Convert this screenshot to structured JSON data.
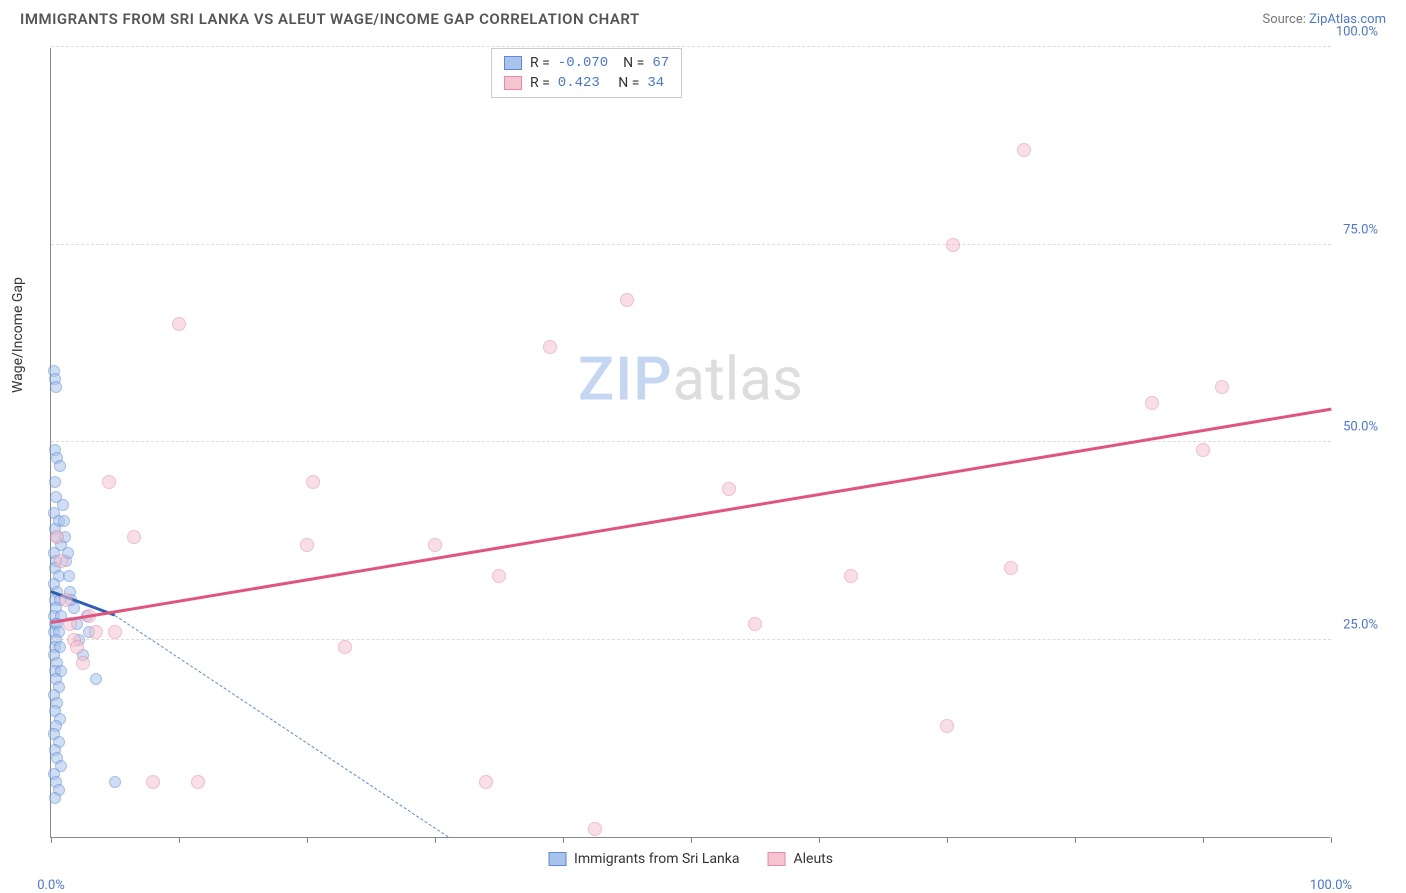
{
  "header": {
    "title": "IMMIGRANTS FROM SRI LANKA VS ALEUT WAGE/INCOME GAP CORRELATION CHART",
    "source_prefix": "Source: ",
    "source_link": "ZipAtlas.com"
  },
  "chart": {
    "type": "scatter",
    "y_axis_label": "Wage/Income Gap",
    "xlim": [
      0,
      100
    ],
    "ylim": [
      0,
      100
    ],
    "x_ticks": [
      0,
      10,
      20,
      30,
      40,
      50,
      60,
      70,
      80,
      90,
      100
    ],
    "x_tick_labels": {
      "0": "0.0%",
      "100": "100.0%"
    },
    "y_gridlines": [
      25,
      50,
      75,
      100
    ],
    "y_tick_labels": {
      "25": "25.0%",
      "50": "50.0%",
      "75": "75.0%",
      "100": "100.0%"
    },
    "background_color": "#ffffff",
    "grid_color": "#dddddd",
    "axis_color": "#888888",
    "watermark": {
      "zip": "ZIP",
      "atlas": "atlas"
    },
    "series": [
      {
        "name": "Immigrants from Sri Lanka",
        "color_fill": "#a8c4ec",
        "color_stroke": "#5b8ad6",
        "marker_size": 12,
        "fill_opacity": 0.55,
        "R": "-0.070",
        "N": "67",
        "trend": {
          "x1": 0,
          "y1": 31,
          "x2": 5,
          "y2": 28,
          "color": "#2e5fb3",
          "width": 2.5
        },
        "trend_extrapolate": {
          "x1": 5,
          "y1": 28,
          "x2": 31,
          "y2": 0,
          "color": "#5b8ad6"
        },
        "points": [
          [
            0.2,
            59
          ],
          [
            0.3,
            58
          ],
          [
            0.4,
            57
          ],
          [
            0.3,
            49
          ],
          [
            0.5,
            48
          ],
          [
            0.7,
            47
          ],
          [
            0.3,
            45
          ],
          [
            0.4,
            43
          ],
          [
            0.2,
            41
          ],
          [
            0.6,
            40
          ],
          [
            0.3,
            39
          ],
          [
            0.5,
            38
          ],
          [
            0.8,
            37
          ],
          [
            0.2,
            36
          ],
          [
            0.4,
            35
          ],
          [
            0.3,
            34
          ],
          [
            0.6,
            33
          ],
          [
            0.2,
            32
          ],
          [
            0.5,
            31
          ],
          [
            0.3,
            30
          ],
          [
            0.7,
            30
          ],
          [
            0.4,
            29
          ],
          [
            0.2,
            28
          ],
          [
            0.8,
            28
          ],
          [
            0.3,
            27
          ],
          [
            0.5,
            27
          ],
          [
            0.2,
            26
          ],
          [
            0.6,
            26
          ],
          [
            0.4,
            25
          ],
          [
            0.3,
            24
          ],
          [
            0.7,
            24
          ],
          [
            0.2,
            23
          ],
          [
            0.5,
            22
          ],
          [
            0.3,
            21
          ],
          [
            0.8,
            21
          ],
          [
            0.4,
            20
          ],
          [
            0.6,
            19
          ],
          [
            0.2,
            18
          ],
          [
            0.5,
            17
          ],
          [
            0.3,
            16
          ],
          [
            0.7,
            15
          ],
          [
            0.4,
            14
          ],
          [
            0.2,
            13
          ],
          [
            0.6,
            12
          ],
          [
            0.3,
            11
          ],
          [
            0.5,
            10
          ],
          [
            0.8,
            9
          ],
          [
            0.2,
            8
          ],
          [
            0.4,
            7
          ],
          [
            0.6,
            6
          ],
          [
            0.3,
            5
          ],
          [
            1.5,
            31
          ],
          [
            1.8,
            29
          ],
          [
            2.0,
            27
          ],
          [
            2.2,
            25
          ],
          [
            2.5,
            23
          ],
          [
            1.2,
            35
          ],
          [
            1.4,
            33
          ],
          [
            1.6,
            30
          ],
          [
            1.0,
            40
          ],
          [
            1.1,
            38
          ],
          [
            1.3,
            36
          ],
          [
            0.9,
            42
          ],
          [
            2.8,
            28
          ],
          [
            3.0,
            26
          ],
          [
            5.0,
            7
          ],
          [
            3.5,
            20
          ]
        ]
      },
      {
        "name": "Aleuts",
        "color_fill": "#f5c4d1",
        "color_stroke": "#e58ba5",
        "marker_size": 14,
        "fill_opacity": 0.55,
        "R": "0.423",
        "N": "34",
        "trend": {
          "x1": 0,
          "y1": 27,
          "x2": 100,
          "y2": 54,
          "color": "#e05580",
          "width": 2.5
        },
        "points": [
          [
            0.5,
            38
          ],
          [
            0.8,
            35
          ],
          [
            1.2,
            30
          ],
          [
            1.5,
            27
          ],
          [
            1.8,
            25
          ],
          [
            2.0,
            24
          ],
          [
            2.5,
            22
          ],
          [
            3.0,
            28
          ],
          [
            3.5,
            26
          ],
          [
            4.5,
            45
          ],
          [
            5.0,
            26
          ],
          [
            6.5,
            38
          ],
          [
            8.0,
            7
          ],
          [
            10.0,
            65
          ],
          [
            11.5,
            7
          ],
          [
            20.0,
            37
          ],
          [
            20.5,
            45
          ],
          [
            23.0,
            24
          ],
          [
            30.0,
            37
          ],
          [
            34.0,
            7
          ],
          [
            35.0,
            33
          ],
          [
            39.0,
            62
          ],
          [
            42.5,
            1
          ],
          [
            45.0,
            68
          ],
          [
            53.0,
            44
          ],
          [
            55.0,
            27
          ],
          [
            62.5,
            33
          ],
          [
            70.0,
            14
          ],
          [
            70.5,
            75
          ],
          [
            75.0,
            34
          ],
          [
            76.0,
            87
          ],
          [
            86.0,
            55
          ],
          [
            90.0,
            49
          ],
          [
            91.5,
            57
          ]
        ]
      }
    ],
    "legend_bottom": [
      {
        "label": "Immigrants from Sri Lanka",
        "fill": "#a8c4ec",
        "stroke": "#5b8ad6"
      },
      {
        "label": "Aleuts",
        "fill": "#f5c4d1",
        "stroke": "#e58ba5"
      }
    ]
  }
}
